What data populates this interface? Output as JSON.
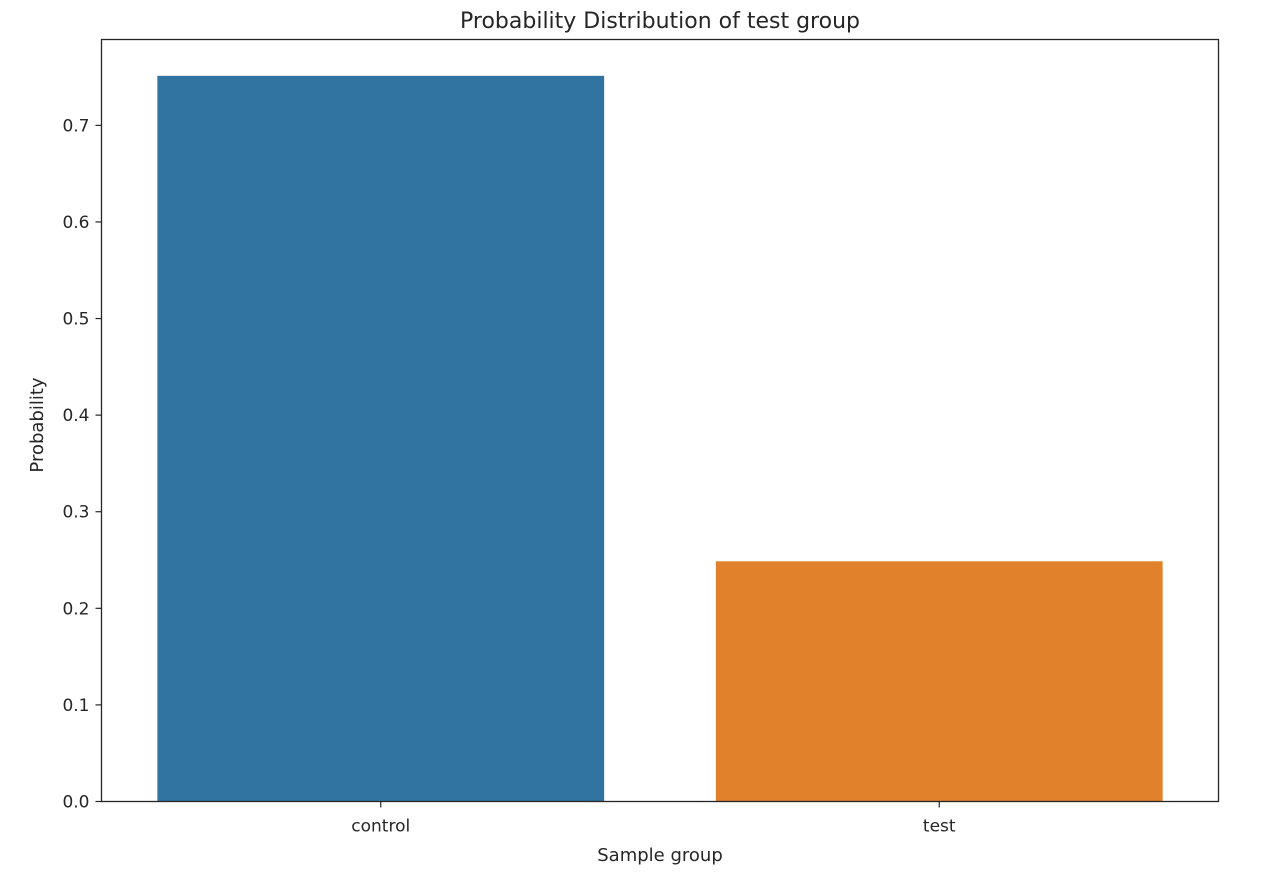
{
  "chart_data": {
    "type": "bar",
    "title": "Probability Distribution of test group",
    "xlabel": "Sample group",
    "ylabel": "Probability",
    "categories": [
      "control",
      "test"
    ],
    "values": [
      0.7513,
      0.2487
    ],
    "colors": [
      "#3274a1",
      "#e1812c"
    ],
    "ylim": [
      0,
      0.7889
    ],
    "yticks": [
      0.0,
      0.1,
      0.2,
      0.3,
      0.4,
      0.5,
      0.6,
      0.7
    ],
    "ytick_labels": [
      "0.0",
      "0.1",
      "0.2",
      "0.3",
      "0.4",
      "0.5",
      "0.6",
      "0.7"
    ],
    "grid": false,
    "legend": "none"
  }
}
